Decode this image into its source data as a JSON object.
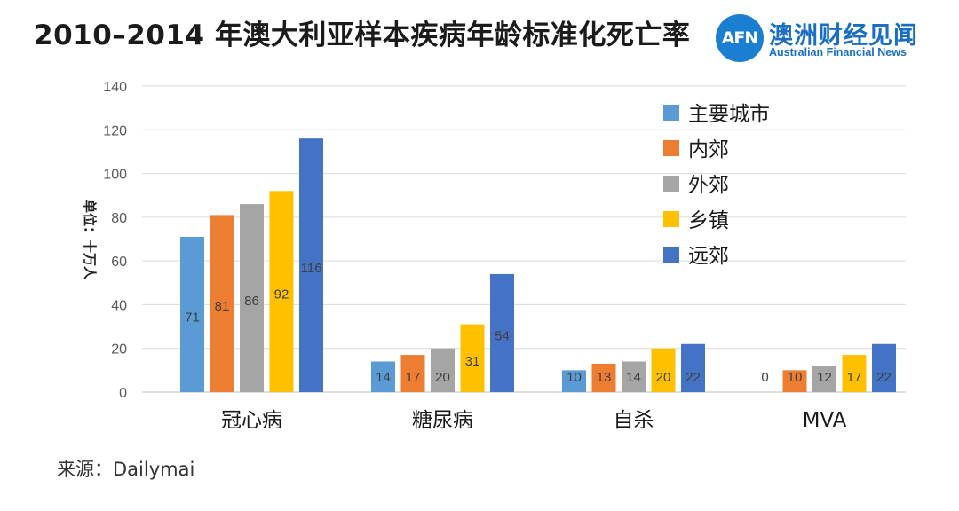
{
  "title": "2010–2014 年澳大利亚样本疾病年龄标准化死亡率",
  "logo": {
    "mark": "AFN",
    "name_cn": "澳洲财经见闻",
    "name_en": "Australian Financial News"
  },
  "source": "来源：Dailymai",
  "colors": {
    "主要城市": "#5b9bd5",
    "内郊": "#ed7d31",
    "外郊": "#a5a5a5",
    "乡镇": "#ffc000",
    "远郊": "#4472c4"
  },
  "chart_data": {
    "type": "bar",
    "title": "2010–2014 年澳大利亚样本疾病年龄标准化死亡率",
    "ylabel": "单位：十万人",
    "xlabel": "",
    "ylim": [
      0,
      140
    ],
    "yticks": [
      0,
      20,
      40,
      60,
      80,
      100,
      120,
      140
    ],
    "categories": [
      "冠心病",
      "糖尿病",
      "自杀",
      "MVA"
    ],
    "legend_position": "top-right",
    "grid": true,
    "series": [
      {
        "name": "主要城市",
        "values": [
          71,
          14,
          10,
          0
        ]
      },
      {
        "name": "内郊",
        "values": [
          81,
          17,
          13,
          10
        ]
      },
      {
        "name": "外郊",
        "values": [
          86,
          20,
          14,
          12
        ]
      },
      {
        "name": "乡镇",
        "values": [
          92,
          31,
          20,
          17
        ]
      },
      {
        "name": "远郊",
        "values": [
          116,
          54,
          22,
          22
        ]
      }
    ]
  }
}
